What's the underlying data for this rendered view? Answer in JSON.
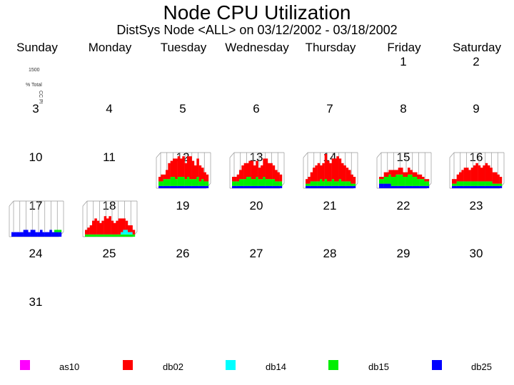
{
  "chart_data": {
    "type": "bar",
    "title": "Node CPU Utilization",
    "subtitle": "DistSys Node <ALL> on 03/12/2002 - 03/18/2002",
    "y_axis_text": [
      "1500",
      "% Total",
      "CC PI"
    ],
    "weekdays": [
      "Sunday",
      "Monday",
      "Tuesday",
      "Wednesday",
      "Thursday",
      "Friday",
      "Saturday"
    ],
    "weeks": [
      [
        "",
        "",
        "",
        "",
        "",
        "1",
        "2"
      ],
      [
        "3",
        "4",
        "5",
        "6",
        "7",
        "8",
        "9"
      ],
      [
        "10",
        "11",
        "12",
        "13",
        "14",
        "15",
        "16"
      ],
      [
        "17",
        "18",
        "19",
        "20",
        "21",
        "22",
        "23"
      ],
      [
        "24",
        "25",
        "26",
        "27",
        "28",
        "29",
        "30"
      ],
      [
        "31",
        "",
        "",
        "",
        "",
        "",
        ""
      ]
    ],
    "series_colors": {
      "as10": "#ff00ff",
      "db02": "#ff0000",
      "db14": "#00ffff",
      "db15": "#00ee00",
      "db25": "#0000ff"
    },
    "days_with_data": {
      "12": {
        "db02": [
          2,
          3,
          2,
          4,
          7,
          7,
          8,
          9,
          9,
          8,
          9,
          7,
          9,
          10,
          8,
          6,
          8,
          7,
          5,
          4,
          3
        ],
        "db15": [
          2,
          2,
          3,
          3,
          3,
          4,
          4,
          3,
          4,
          4,
          4,
          3,
          4,
          3,
          3,
          3,
          4,
          2,
          3,
          2,
          2
        ],
        "db25": [
          1,
          1,
          1,
          1,
          1,
          1,
          1,
          1,
          1,
          1,
          1,
          1,
          1,
          1,
          1,
          1,
          1,
          1,
          1,
          1,
          1
        ]
      },
      "13": {
        "db02": [
          2,
          2,
          3,
          4,
          6,
          7,
          6,
          7,
          8,
          6,
          7,
          5,
          6,
          8,
          9,
          7,
          7,
          6,
          5,
          4,
          3
        ],
        "db15": [
          2,
          2,
          2,
          3,
          3,
          3,
          4,
          4,
          3,
          3,
          4,
          3,
          3,
          4,
          3,
          3,
          3,
          3,
          2,
          2,
          2
        ],
        "db25": [
          1,
          1,
          1,
          1,
          1,
          1,
          1,
          1,
          1,
          1,
          1,
          1,
          1,
          1,
          1,
          1,
          1,
          1,
          1,
          1,
          1
        ]
      },
      "14": {
        "db02": [
          2,
          3,
          4,
          6,
          7,
          8,
          6,
          8,
          11,
          9,
          8,
          9,
          10,
          11,
          9,
          8,
          7,
          6,
          5,
          4,
          3
        ],
        "db15": [
          1,
          1,
          2,
          2,
          2,
          2,
          3,
          2,
          3,
          2,
          2,
          3,
          2,
          2,
          3,
          2,
          2,
          2,
          2,
          1,
          1
        ],
        "db25": [
          1,
          1,
          1,
          1,
          1,
          1,
          1,
          1,
          1,
          1,
          1,
          1,
          1,
          1,
          1,
          1,
          1,
          1,
          1,
          1,
          1
        ]
      },
      "15": {
        "db02": [
          1,
          1,
          2,
          2,
          2,
          3,
          3,
          2,
          3,
          3,
          2,
          2,
          3,
          2,
          2,
          2,
          2,
          2,
          1,
          1,
          1
        ],
        "db15": [
          2,
          2,
          3,
          3,
          4,
          4,
          4,
          5,
          5,
          5,
          4,
          4,
          5,
          5,
          4,
          4,
          3,
          3,
          3,
          2,
          2
        ],
        "db25": [
          2,
          2,
          2,
          2,
          2,
          1,
          1,
          1,
          1,
          1,
          1,
          1,
          1,
          1,
          1,
          1,
          1,
          1,
          1,
          1,
          1
        ]
      },
      "16": {
        "db02": [
          2,
          2,
          3,
          4,
          5,
          6,
          6,
          5,
          6,
          7,
          8,
          7,
          6,
          7,
          8,
          7,
          6,
          5,
          5,
          4,
          3
        ],
        "db15": [
          1,
          1,
          2,
          2,
          2,
          2,
          2,
          2,
          2,
          2,
          2,
          2,
          2,
          2,
          2,
          2,
          2,
          1,
          1,
          1,
          1
        ],
        "db25": [
          1,
          1,
          1,
          1,
          1,
          1,
          1,
          1,
          1,
          1,
          1,
          1,
          1,
          1,
          1,
          1,
          1,
          1,
          1,
          1,
          1
        ]
      },
      "17": {
        "db02": [
          0,
          0,
          0,
          0,
          0,
          0,
          0,
          0,
          0,
          0,
          0,
          0,
          0,
          0,
          0,
          0,
          0,
          0,
          0,
          0,
          0
        ],
        "db15": [
          0,
          0,
          0,
          0,
          0,
          0,
          0,
          0,
          0,
          0,
          0,
          0,
          0,
          0,
          0,
          0,
          0,
          0,
          1,
          1,
          1
        ],
        "db25": [
          2,
          2,
          2,
          2,
          2,
          3,
          3,
          2,
          3,
          3,
          2,
          2,
          3,
          2,
          2,
          2,
          3,
          2,
          2,
          2,
          2
        ]
      },
      "18": {
        "db02": [
          2,
          3,
          4,
          6,
          7,
          6,
          5,
          6,
          8,
          7,
          8,
          6,
          5,
          6,
          7,
          6,
          5,
          4,
          3,
          3,
          2
        ],
        "db15": [
          1,
          1,
          1,
          1,
          1,
          1,
          1,
          1,
          1,
          1,
          1,
          1,
          1,
          1,
          1,
          1,
          1,
          1,
          1,
          1,
          1
        ],
        "db25": [
          0,
          0,
          0,
          0,
          0,
          0,
          0,
          0,
          0,
          0,
          0,
          0,
          0,
          0,
          0,
          0,
          0,
          0,
          0,
          0,
          0
        ],
        "db14": [
          0,
          0,
          0,
          0,
          0,
          0,
          0,
          0,
          0,
          0,
          0,
          0,
          0,
          0,
          0,
          1,
          2,
          2,
          1,
          1,
          0
        ]
      }
    }
  },
  "legend": [
    {
      "label": "as10",
      "color": "#ff00ff"
    },
    {
      "label": "db02",
      "color": "#ff0000"
    },
    {
      "label": "db14",
      "color": "#00ffff"
    },
    {
      "label": "db15",
      "color": "#00ee00"
    },
    {
      "label": "db25",
      "color": "#0000ff"
    }
  ]
}
